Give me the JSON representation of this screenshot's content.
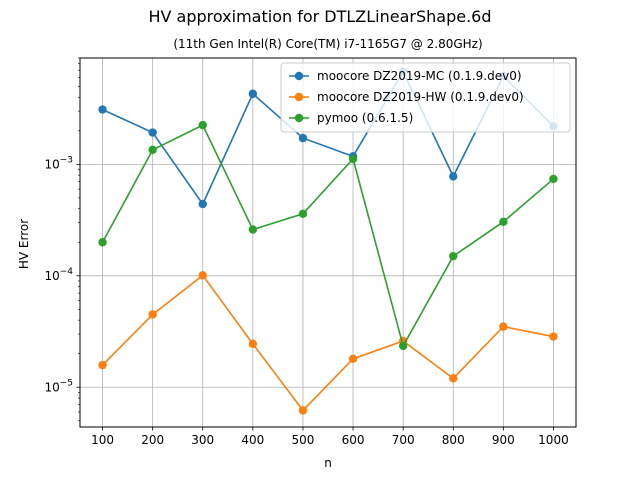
{
  "chart_data": {
    "type": "line",
    "title": "HV approximation for DTLZLinearShape.6d",
    "subtitle": "(11th Gen Intel(R) Core(TM) i7-1165G7 @ 2.80GHz)",
    "xlabel": "n",
    "ylabel": "HV Error",
    "yscale": "log",
    "grid": true,
    "legend_position": "top-right",
    "x": [
      100,
      200,
      300,
      400,
      500,
      600,
      700,
      800,
      900,
      1000
    ],
    "xticks": [
      "100",
      "200",
      "300",
      "400",
      "500",
      "600",
      "700",
      "800",
      "900",
      "1000"
    ],
    "xlim": [
      55,
      1045
    ],
    "ylim": [
      4.4e-06,
      0.009
    ],
    "yticks": [
      {
        "value": 1e-05,
        "base": "10",
        "exp": "−5"
      },
      {
        "value": 0.0001,
        "base": "10",
        "exp": "−4"
      },
      {
        "value": 0.001,
        "base": "10",
        "exp": "−3"
      }
    ],
    "series": [
      {
        "name": "moocore DZ2019-MC (0.1.9.dev0)",
        "color": "#1f77b4",
        "values": [
          0.0031,
          0.00193,
          0.00044,
          0.0043,
          0.00172,
          0.00118,
          0.0068,
          0.00078,
          0.0062,
          0.0022
        ]
      },
      {
        "name": "moocore DZ2019-HW (0.1.9.dev0)",
        "color": "#ff7f0e",
        "values": [
          1.58e-05,
          4.5e-05,
          0.000101,
          2.45e-05,
          6.2e-06,
          1.8e-05,
          2.6e-05,
          1.2e-05,
          3.5e-05,
          2.85e-05
        ]
      },
      {
        "name": "pymoo (0.6.1.5)",
        "color": "#2ca02c",
        "values": [
          0.0002,
          0.00135,
          0.00225,
          0.00026,
          0.00036,
          0.00112,
          2.35e-05,
          0.00015,
          0.000305,
          0.00074
        ]
      }
    ]
  }
}
